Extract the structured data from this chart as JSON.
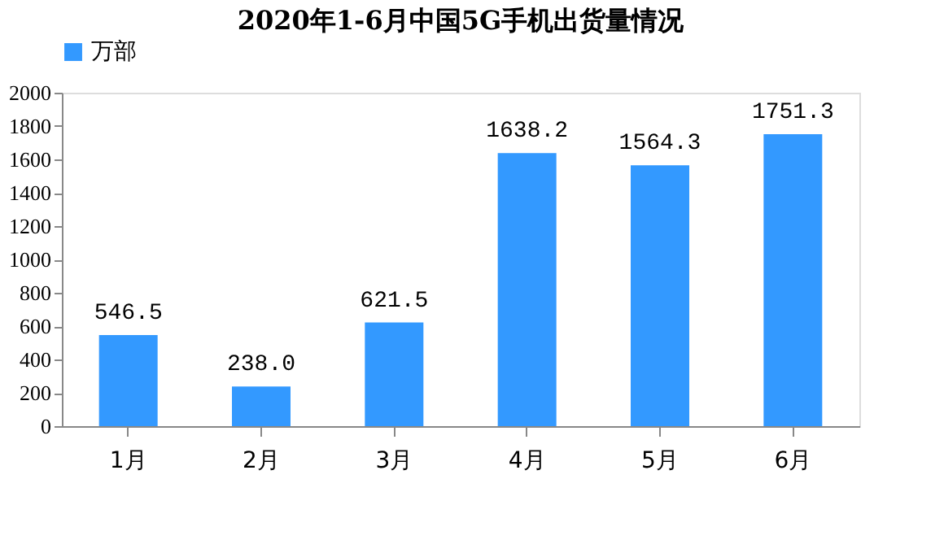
{
  "chart_data": {
    "type": "bar",
    "title": "2020年1-6月中国5G手机出货量情况",
    "categories": [
      "1月",
      "2月",
      "3月",
      "4月",
      "5月",
      "6月"
    ],
    "series": [
      {
        "name": "万部",
        "color": "#3399ff",
        "values": [
          546.5,
          238.0,
          621.5,
          1638.2,
          1564.3,
          1751.3
        ],
        "value_labels": [
          "546.5",
          "238.0",
          "621.5",
          "1638.2",
          "1564.3",
          "1751.3"
        ]
      }
    ],
    "ylim": [
      0,
      2000
    ],
    "yticks": [
      0,
      200,
      400,
      600,
      800,
      1000,
      1200,
      1400,
      1600,
      1800,
      2000
    ],
    "grid": false,
    "legend": "top"
  }
}
